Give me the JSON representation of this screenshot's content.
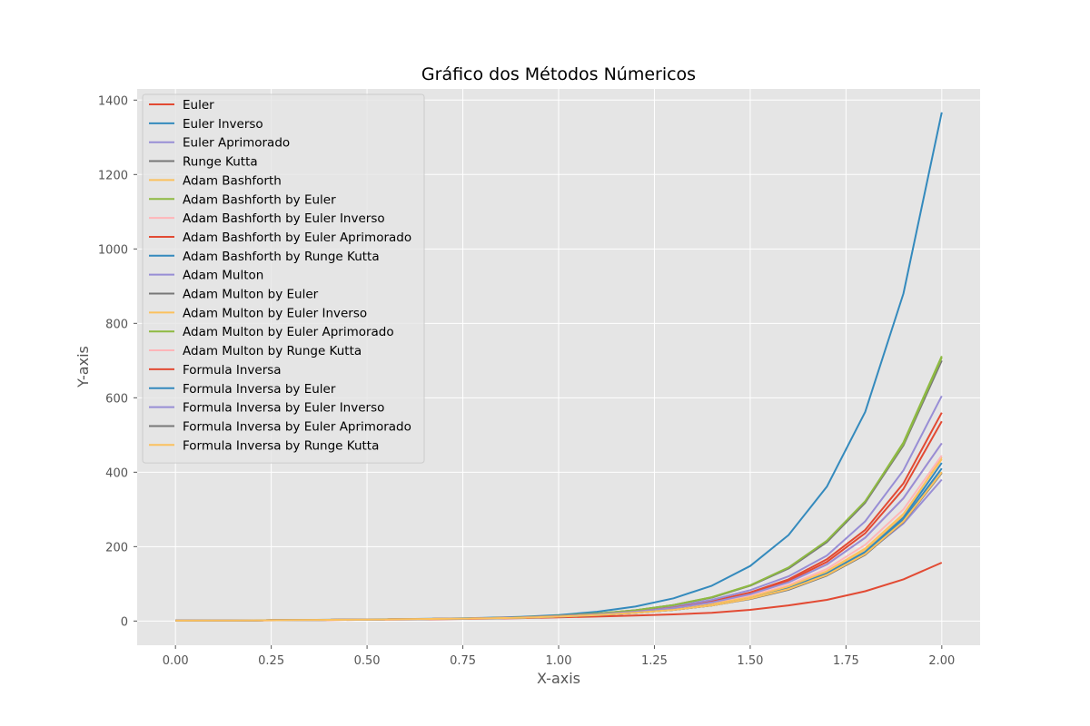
{
  "chart_data": {
    "type": "line",
    "title": "Gráfico dos Métodos Númericos",
    "xlabel": "X-axis",
    "ylabel": "Y-axis",
    "xlim": [
      -0.1,
      2.1
    ],
    "ylim": [
      -65,
      1430
    ],
    "xticks": [
      0,
      0.25,
      0.5,
      0.75,
      1,
      1.25,
      1.5,
      1.75,
      2
    ],
    "xtick_labels": [
      "0.00",
      "0.25",
      "0.50",
      "0.75",
      "1.00",
      "1.25",
      "1.50",
      "1.75",
      "2.00"
    ],
    "yticks": [
      0,
      200,
      400,
      600,
      800,
      1000,
      1200,
      1400
    ],
    "ytick_labels": [
      "0",
      "200",
      "400",
      "600",
      "800",
      "1000",
      "1200",
      "1400"
    ],
    "grid": true,
    "legend_position": "upper-left",
    "background_color": "#e5e5e5",
    "grid_color": "#ffffff",
    "x": [
      0,
      0.1,
      0.2,
      0.3,
      0.4,
      0.5,
      0.6,
      0.7,
      0.8,
      0.9,
      1.0,
      1.1,
      1.2,
      1.3,
      1.4,
      1.5,
      1.6,
      1.7,
      1.8,
      1.9,
      2.0
    ],
    "series": [
      {
        "name": "Euler",
        "color": "#e24a33",
        "values": [
          1,
          1.3,
          1.7,
          2.2,
          2.8,
          3.5,
          4.3,
          5.3,
          6.5,
          8,
          10,
          12,
          15,
          18,
          22,
          30,
          42,
          57,
          80,
          112,
          157
        ]
      },
      {
        "name": "Euler Inverso",
        "color": "#348abd",
        "values": [
          1,
          1.5,
          2.1,
          2.8,
          3.6,
          4.5,
          5.5,
          6.8,
          8.5,
          11,
          16,
          25,
          39,
          61,
          95,
          148,
          231,
          361,
          562,
          880,
          1367
        ]
      },
      {
        "name": "Euler Aprimorado",
        "color": "#988ed5",
        "values": [
          1,
          1.4,
          1.9,
          2.5,
          3.2,
          4,
          4.9,
          6,
          7.3,
          9,
          12,
          16,
          22,
          30,
          42,
          60,
          86,
          124,
          180,
          262,
          380
        ]
      },
      {
        "name": "Runge Kutta",
        "color": "#777777",
        "values": [
          1,
          1.4,
          1.9,
          2.5,
          3.2,
          4,
          4.9,
          6,
          7.3,
          9,
          12,
          16,
          22,
          30,
          42,
          60,
          86,
          124,
          180,
          270,
          400
        ]
      },
      {
        "name": "Adam Bashforth",
        "color": "#fbc15e",
        "values": [
          1,
          1.4,
          1.9,
          2.5,
          3.2,
          4,
          4.9,
          6,
          7.3,
          9,
          12,
          17,
          23,
          32,
          45,
          64,
          92,
          132,
          192,
          282,
          440
        ]
      },
      {
        "name": "Adam Bashforth by Euler",
        "color": "#8eba42",
        "values": [
          1,
          1.4,
          1.9,
          2.5,
          3.2,
          4,
          4.9,
          6,
          7.5,
          10,
          14,
          20,
          29,
          43,
          64,
          96,
          143,
          215,
          320,
          480,
          712
        ]
      },
      {
        "name": "Adam Bashforth by Euler Inverso",
        "color": "#ffb5b8",
        "values": [
          1,
          1.4,
          1.9,
          2.5,
          3.2,
          4,
          4.9,
          6,
          7.3,
          9,
          12,
          17,
          24,
          33,
          47,
          67,
          97,
          140,
          205,
          300,
          445
        ]
      },
      {
        "name": "Adam Bashforth by Euler Aprimorado",
        "color": "#e24a33",
        "values": [
          1,
          1.4,
          1.9,
          2.5,
          3.2,
          4,
          4.9,
          6,
          7.4,
          9.5,
          13,
          18,
          26,
          37,
          53,
          77,
          112,
          166,
          245,
          370,
          560
        ]
      },
      {
        "name": "Adam Bashforth by Runge Kutta",
        "color": "#348abd",
        "values": [
          1,
          1.4,
          1.9,
          2.5,
          3.2,
          4,
          4.9,
          6,
          7.3,
          9,
          12,
          16,
          22,
          31,
          43,
          62,
          89,
          128,
          186,
          278,
          425
        ]
      },
      {
        "name": "Adam Multon",
        "color": "#988ed5",
        "values": [
          1,
          1.4,
          1.9,
          2.5,
          3.2,
          4,
          4.9,
          6,
          7.4,
          9.5,
          13,
          19,
          27,
          39,
          57,
          83,
          120,
          176,
          268,
          405,
          605
        ]
      },
      {
        "name": "Adam Multon by Euler",
        "color": "#777777",
        "values": [
          1,
          1.4,
          1.9,
          2.5,
          3.2,
          4,
          4.9,
          6,
          7.5,
          10,
          14,
          20,
          29,
          43,
          63,
          95,
          141,
          212,
          318,
          472,
          700
        ]
      },
      {
        "name": "Adam Multon by Euler Inverso",
        "color": "#fbc15e",
        "values": [
          1,
          1.4,
          1.9,
          2.5,
          3.2,
          4,
          4.9,
          6,
          7.3,
          9,
          12,
          17,
          23,
          32,
          45,
          64,
          93,
          134,
          195,
          288,
          435
        ]
      },
      {
        "name": "Adam Multon by Euler Aprimorado",
        "color": "#8eba42",
        "values": [
          1,
          1.4,
          1.9,
          2.5,
          3.2,
          4,
          4.9,
          6,
          7.5,
          10,
          14,
          20,
          29,
          43,
          64,
          96,
          144,
          216,
          322,
          476,
          708
        ]
      },
      {
        "name": "Adam Multon by Runge Kutta",
        "color": "#ffb5b8",
        "values": [
          1,
          1.4,
          1.9,
          2.5,
          3.2,
          4,
          4.9,
          6,
          7.4,
          9.5,
          13,
          18,
          25,
          35,
          50,
          72,
          104,
          152,
          224,
          330,
          478
        ]
      },
      {
        "name": "Formula Inversa",
        "color": "#e24a33",
        "values": [
          1,
          1.4,
          1.9,
          2.5,
          3.2,
          4,
          4.9,
          6,
          7.4,
          9.5,
          13,
          18,
          25,
          36,
          51,
          74,
          108,
          159,
          236,
          355,
          537
        ]
      },
      {
        "name": "Formula Inversa by Euler",
        "color": "#348abd",
        "values": [
          1,
          1.4,
          1.9,
          2.5,
          3.2,
          4,
          4.9,
          6,
          7.3,
          9,
          12,
          16,
          22,
          30,
          42,
          60,
          87,
          126,
          183,
          272,
          410
        ]
      },
      {
        "name": "Formula Inversa by Euler Inverso",
        "color": "#988ed5",
        "values": [
          1,
          1.4,
          1.9,
          2.5,
          3.2,
          4,
          4.9,
          6,
          7.4,
          9.5,
          13,
          18,
          25,
          35,
          50,
          72,
          104,
          152,
          224,
          330,
          478
        ]
      },
      {
        "name": "Formula Inversa by Euler Aprimorado",
        "color": "#777777",
        "values": [
          1,
          1.4,
          1.9,
          2.5,
          3.2,
          4,
          4.9,
          6,
          7.3,
          9,
          12,
          16,
          22,
          30,
          42,
          59,
          84,
          122,
          178,
          266,
          398
        ]
      },
      {
        "name": "Formula Inversa by Runge Kutta",
        "color": "#fbc15e",
        "values": [
          1,
          1.4,
          1.9,
          2.5,
          3.2,
          4,
          4.9,
          6,
          7.3,
          9,
          12,
          16,
          22,
          30,
          42,
          60,
          86,
          124,
          180,
          268,
          400
        ]
      }
    ]
  }
}
